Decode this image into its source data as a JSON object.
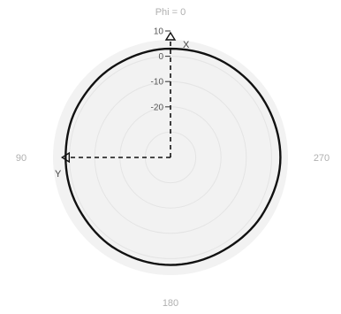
{
  "chart_data": {
    "type": "polar",
    "title": "Phi = 0",
    "direction_labels": {
      "top": "Phi = 0",
      "left": "90",
      "right": "270",
      "bottom": "180"
    },
    "radial_axis": {
      "ticks": [
        10,
        0,
        -10,
        -20
      ],
      "tick_labels": [
        "10",
        "0",
        "-10",
        "-20"
      ],
      "range": [
        -40,
        10
      ]
    },
    "axis_letters": {
      "x": "X",
      "y": "Y"
    },
    "grid": true,
    "series": [
      {
        "angles": [
          0,
          30,
          60,
          90,
          120,
          150,
          180,
          210,
          240,
          270,
          300,
          330
        ],
        "values": [
          3,
          2.5,
          2,
          1.5,
          1.6,
          2.2,
          2.5,
          2.3,
          2.8,
          3.5,
          3.3,
          3.2
        ]
      }
    ],
    "colors": {
      "pattern": "#111111",
      "grid": "#e4e4e4",
      "background": "#f2f2f2",
      "axis": "#111111"
    }
  }
}
